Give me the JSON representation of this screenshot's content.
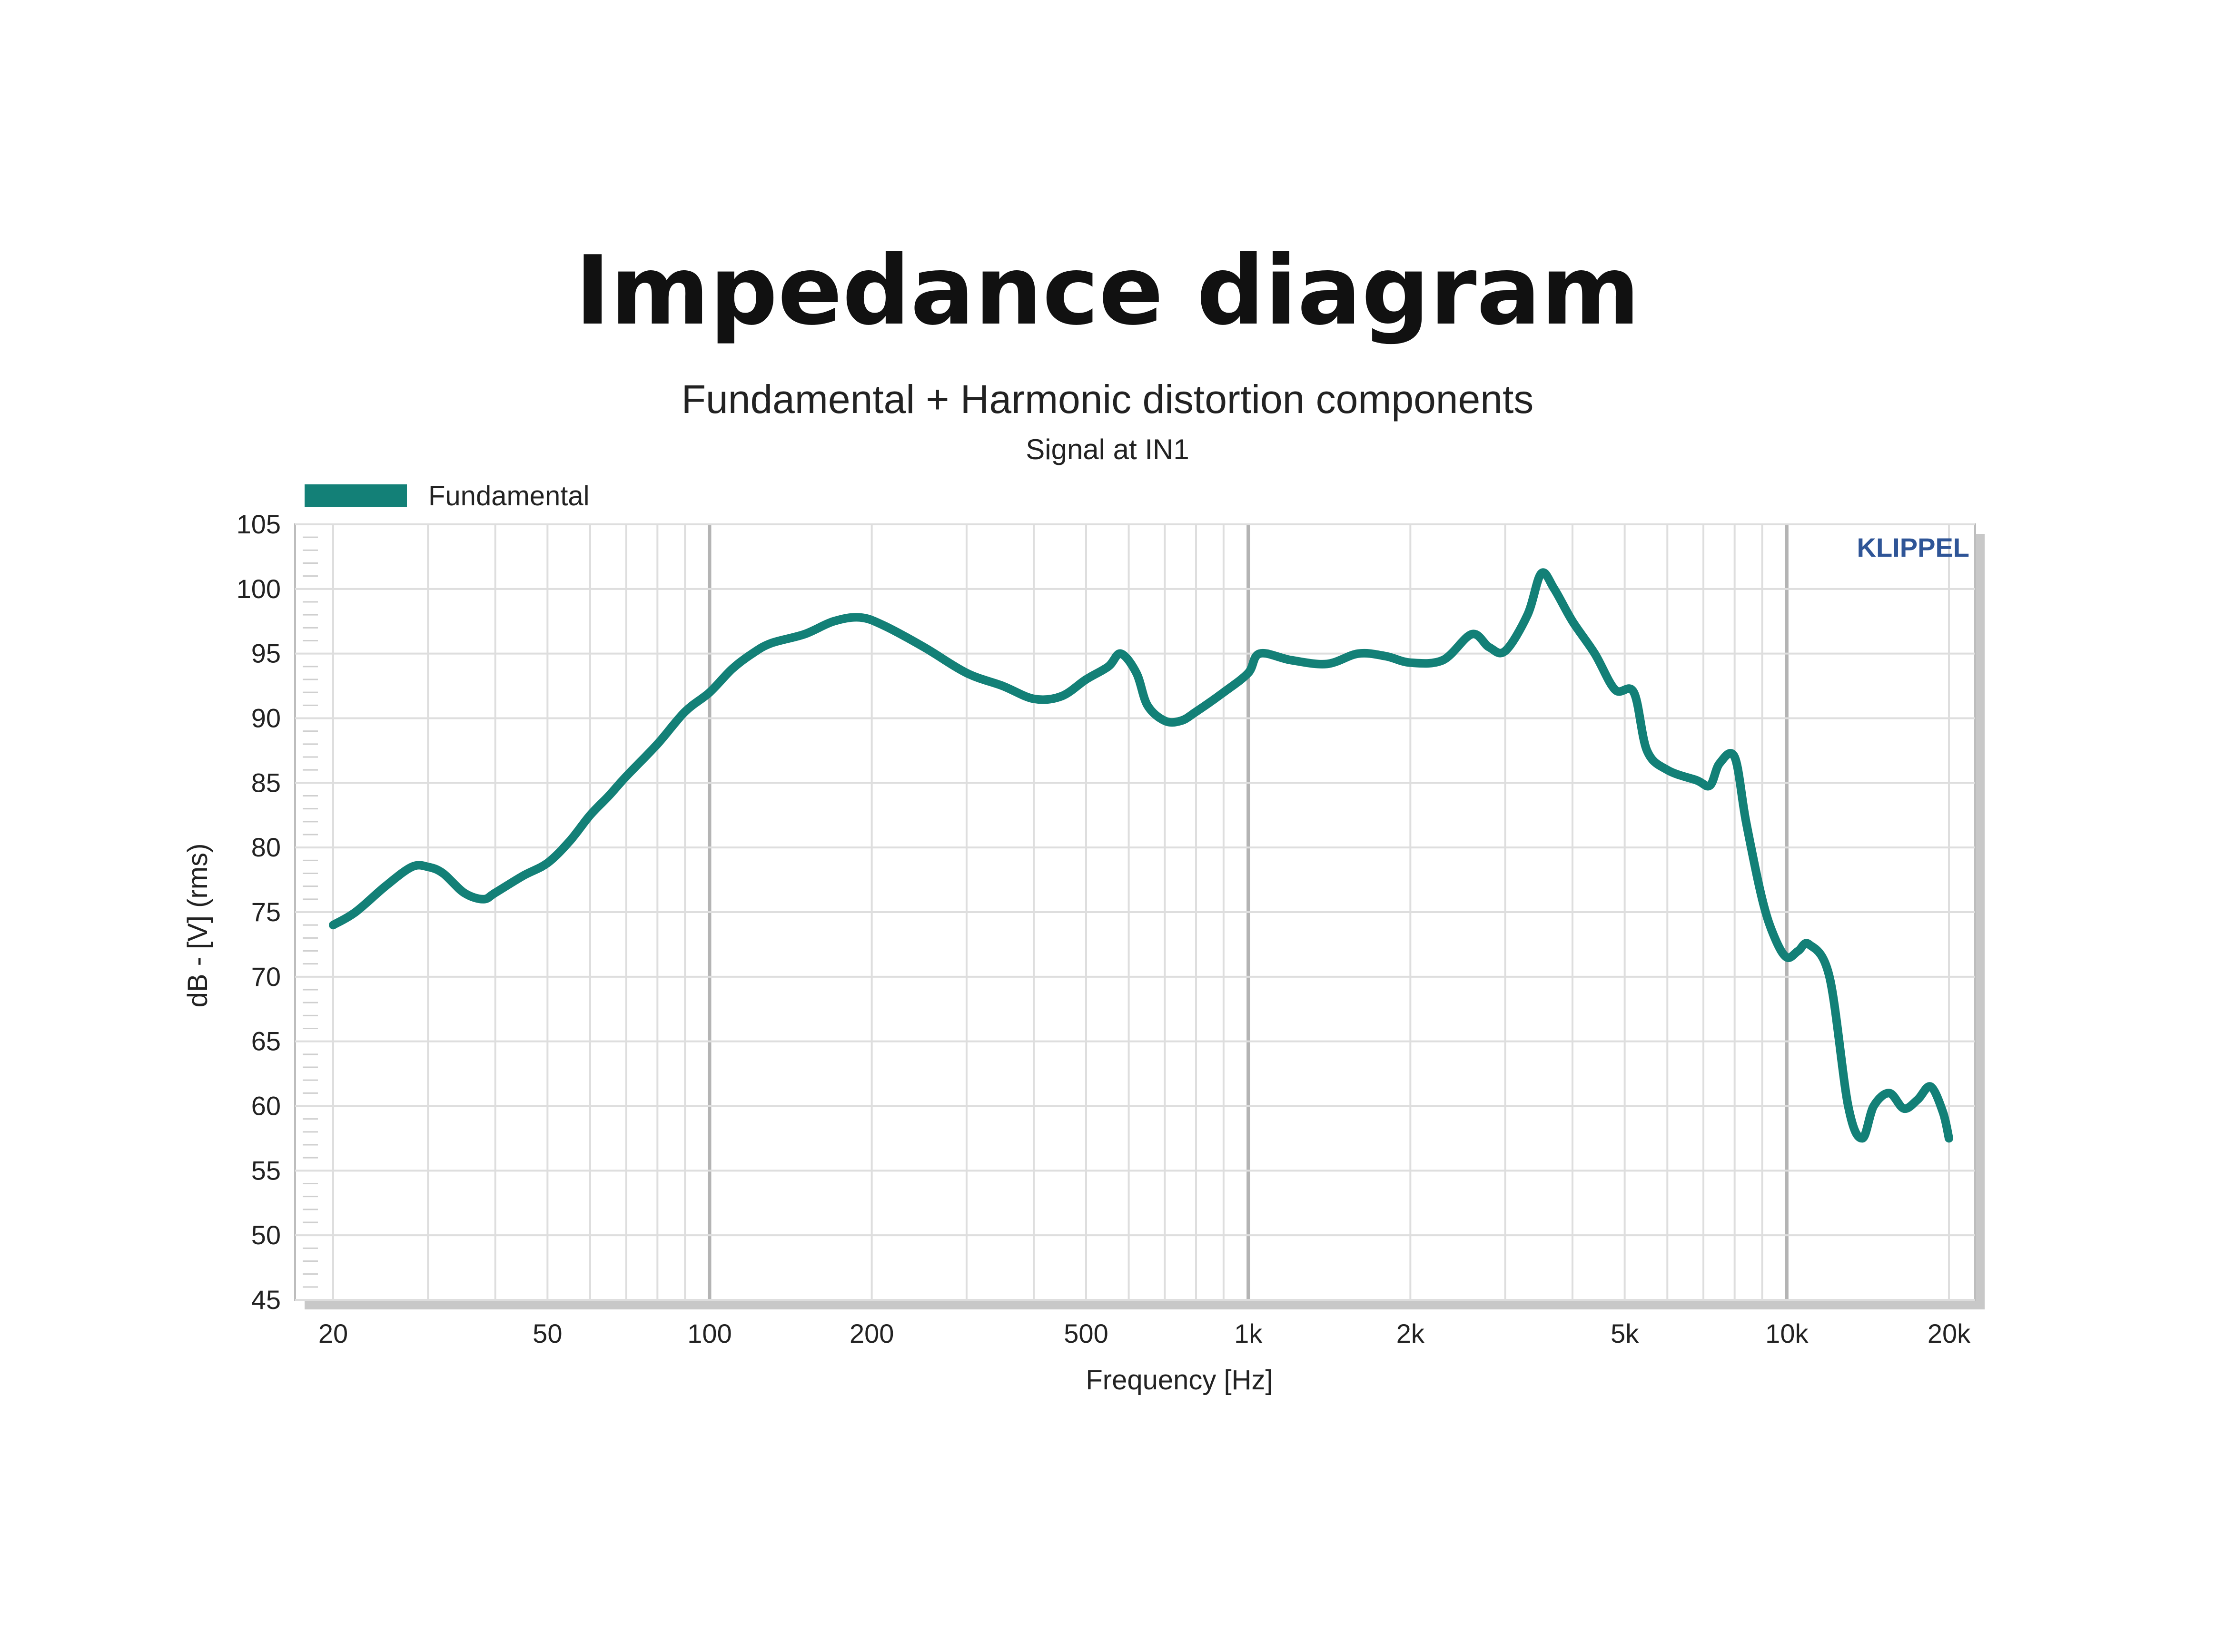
{
  "page_title": "Impedance diagram",
  "brand": "KLIPPEL",
  "chart_data": {
    "type": "line",
    "title": "Fundamental + Harmonic distortion components",
    "subtitle": "Signal at IN1",
    "xlabel": "Frequency [Hz]",
    "ylabel": "dB - [V]  (rms)",
    "xscale": "log",
    "xlim": [
      20,
      20000
    ],
    "ylim": [
      45,
      105
    ],
    "grid": true,
    "legend_position": "top-left",
    "x_ticks": [
      {
        "value": 20,
        "label": "20"
      },
      {
        "value": 50,
        "label": "50"
      },
      {
        "value": 100,
        "label": "100"
      },
      {
        "value": 200,
        "label": "200"
      },
      {
        "value": 500,
        "label": "500"
      },
      {
        "value": 1000,
        "label": "1k"
      },
      {
        "value": 2000,
        "label": "2k"
      },
      {
        "value": 5000,
        "label": "5k"
      },
      {
        "value": 10000,
        "label": "10k"
      },
      {
        "value": 20000,
        "label": "20k"
      }
    ],
    "y_ticks": [
      105,
      100,
      95,
      90,
      85,
      80,
      75,
      70,
      65,
      60,
      55,
      50,
      45
    ],
    "series": [
      {
        "name": "Fundamental",
        "color": "#138077",
        "x": [
          20,
          22,
          25,
          28,
          30,
          32,
          35,
          38,
          40,
          45,
          50,
          55,
          60,
          65,
          70,
          80,
          90,
          100,
          110,
          120,
          130,
          150,
          170,
          190,
          210,
          250,
          300,
          350,
          400,
          450,
          500,
          550,
          580,
          620,
          650,
          700,
          750,
          800,
          900,
          1000,
          1050,
          1200,
          1400,
          1600,
          1800,
          2000,
          2300,
          2600,
          2800,
          3000,
          3300,
          3500,
          3700,
          4000,
          4400,
          4800,
          5200,
          5500,
          6000,
          6800,
          7200,
          7500,
          8000,
          8400,
          9000,
          9500,
          10000,
          10500,
          11000,
          12000,
          13000,
          13800,
          14500,
          15500,
          16500,
          17500,
          18500,
          19500,
          20000
        ],
        "y": [
          74,
          75,
          77,
          78.5,
          78.5,
          78,
          76.5,
          76,
          76.5,
          77.8,
          78.8,
          80.5,
          82.5,
          84,
          85.5,
          88,
          90.5,
          92,
          93.8,
          95,
          95.8,
          96.5,
          97.5,
          97.8,
          97.2,
          95.5,
          93.5,
          92.5,
          91.5,
          91.7,
          93,
          94,
          95,
          93.5,
          91,
          89.8,
          89.8,
          90.5,
          92,
          93.5,
          95,
          94.5,
          94.2,
          95,
          94.8,
          94.3,
          94.5,
          96.5,
          95.5,
          95.2,
          98,
          101.2,
          100,
          97.5,
          95,
          92.2,
          92,
          87.5,
          86,
          85.2,
          84.8,
          86.5,
          87,
          82,
          76,
          73,
          71.5,
          72,
          72.5,
          70,
          60,
          57.5,
          60,
          61,
          59.8,
          60.5,
          61.5,
          59.5,
          57.5
        ]
      }
    ]
  }
}
